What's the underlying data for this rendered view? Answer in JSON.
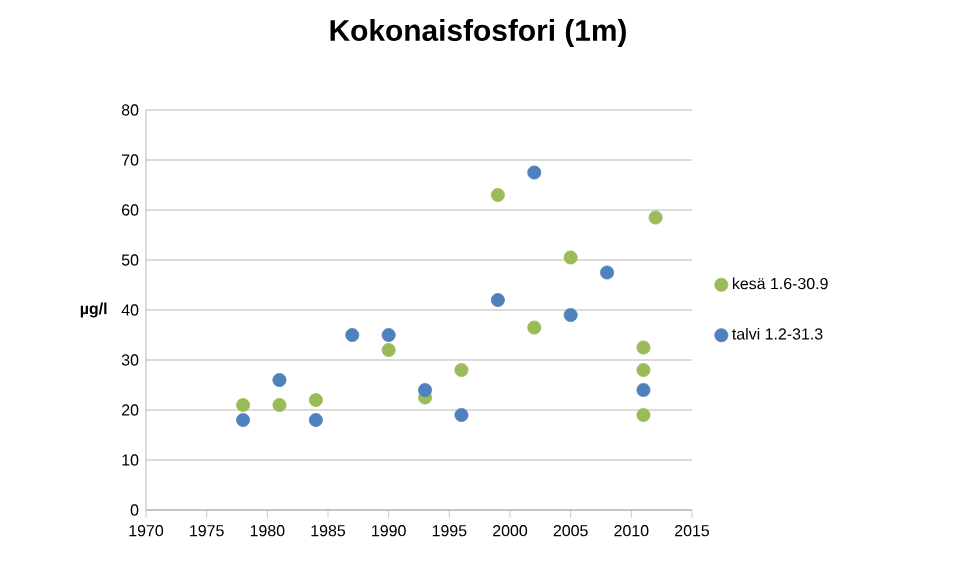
{
  "chart_data": {
    "type": "scatter",
    "title": "Kokonaisfosfori (1m)",
    "ylabel": "µg/l",
    "series": [
      {
        "name": "kesä 1.6-30.9",
        "color": "#9bbb59",
        "x": [
          1978,
          1981,
          1984,
          1990,
          1993,
          1996,
          1999,
          2002,
          2005,
          2011,
          2011,
          2011,
          2012
        ],
        "values": [
          21,
          21,
          22,
          32,
          22.5,
          28,
          63,
          36.5,
          50.5,
          32.5,
          28,
          19,
          58.5
        ]
      },
      {
        "name": "talvi 1.2-31.3",
        "color": "#4f81bd",
        "x": [
          1978,
          1981,
          1984,
          1987,
          1990,
          1993,
          1996,
          1999,
          2002,
          2005,
          2008,
          2011
        ],
        "values": [
          18,
          26,
          18,
          35,
          35,
          24,
          19,
          42,
          67.5,
          39,
          47.5,
          24
        ]
      }
    ],
    "xlim": [
      1970,
      2015
    ],
    "xticks": [
      1970,
      1975,
      1980,
      1985,
      1990,
      1995,
      2000,
      2005,
      2010,
      2015
    ],
    "ylim": [
      0,
      80
    ],
    "yticks": [
      0,
      10,
      20,
      30,
      40,
      50,
      60,
      70,
      80
    ],
    "grid": "y",
    "legend": "right",
    "marker": "circle"
  }
}
